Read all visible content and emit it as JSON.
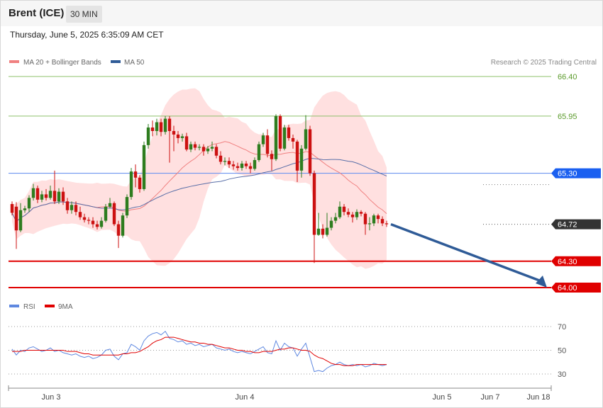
{
  "header": {
    "instrument": "Brent (ICE)",
    "timeframe": "30 MIN",
    "datetime": "Thursday, June 5, 2025 6:35:09 AM CET"
  },
  "legend": {
    "ma20": "MA 20 + Bollinger Bands",
    "ma50": "MA 50",
    "rsi": "RSI",
    "rsi_ma": "9MA",
    "credit": "Research © 2025 Trading Central"
  },
  "colors": {
    "bull": "#2e7d1f",
    "bear": "#cc1111",
    "bollinger_fill": "#ffd6d6",
    "ma20": "#f08080",
    "ma50": "#5a6fa8",
    "resistance": "#8cc06a",
    "pivot": "#1a5ff0",
    "support": "#e00000",
    "last": "#333333",
    "rsi": "#5f88e0",
    "rsi_ma": "#e00000",
    "forecast_arrow": "#2f5b97"
  },
  "chart_data": [
    {
      "type": "candlestick",
      "title": "Brent (ICE)",
      "x_ticks": [
        "Jun 3",
        "Jun 4",
        "Jun 5",
        "Jun 7",
        "Jun 18"
      ],
      "ylim": [
        63.9,
        66.52
      ],
      "levels": [
        {
          "value": 66.4,
          "label": "66.40",
          "kind": "resistance"
        },
        {
          "value": 65.95,
          "label": "65.95",
          "kind": "resistance"
        },
        {
          "value": 65.3,
          "label": "65.30",
          "kind": "pivot"
        },
        {
          "value": 64.72,
          "label": "64.72",
          "kind": "last"
        },
        {
          "value": 64.3,
          "label": "64.30",
          "kind": "support"
        },
        {
          "value": 64.0,
          "label": "64.00",
          "kind": "support"
        }
      ],
      "forecast": {
        "from": 64.72,
        "to": 64.0
      },
      "candles": [
        [
          64.95,
          64.85,
          64.98,
          64.82
        ],
        [
          64.92,
          64.65,
          64.97,
          64.44
        ],
        [
          64.65,
          64.88,
          64.96,
          64.63
        ],
        [
          64.88,
          64.9,
          64.93,
          64.85
        ],
        [
          64.9,
          65.02,
          65.05,
          64.86
        ],
        [
          65.02,
          65.13,
          65.18,
          64.99
        ],
        [
          65.13,
          65.0,
          65.16,
          64.96
        ],
        [
          65.0,
          65.06,
          65.1,
          64.97
        ],
        [
          65.06,
          65.02,
          65.12,
          64.99
        ],
        [
          65.02,
          65.1,
          65.16,
          65.0
        ],
        [
          65.1,
          64.98,
          65.33,
          64.95
        ],
        [
          64.98,
          65.09,
          65.13,
          64.95
        ],
        [
          65.09,
          64.98,
          65.14,
          64.94
        ],
        [
          64.98,
          64.88,
          65.02,
          64.84
        ],
        [
          64.88,
          64.94,
          64.98,
          64.84
        ],
        [
          64.94,
          64.86,
          64.98,
          64.82
        ],
        [
          64.86,
          64.8,
          64.92,
          64.77
        ],
        [
          64.8,
          64.77,
          64.84,
          64.74
        ],
        [
          64.77,
          64.76,
          64.8,
          64.72
        ],
        [
          64.76,
          64.72,
          64.8,
          64.68
        ],
        [
          64.72,
          64.69,
          64.76,
          64.66
        ],
        [
          64.69,
          64.76,
          64.8,
          64.67
        ],
        [
          64.76,
          64.92,
          64.95,
          64.74
        ],
        [
          64.92,
          64.96,
          65.02,
          64.9
        ],
        [
          64.96,
          64.72,
          64.98,
          64.7
        ],
        [
          64.72,
          64.59,
          64.76,
          64.45
        ],
        [
          64.59,
          64.82,
          64.85,
          64.57
        ],
        [
          64.82,
          65.03,
          65.06,
          64.79
        ],
        [
          65.03,
          65.32,
          65.36,
          65.0
        ],
        [
          65.32,
          65.25,
          65.4,
          65.14
        ],
        [
          65.25,
          65.12,
          65.28,
          65.08
        ],
        [
          65.12,
          65.62,
          65.66,
          65.1
        ],
        [
          65.62,
          65.82,
          65.86,
          65.58
        ],
        [
          65.82,
          65.78,
          65.9,
          65.72
        ],
        [
          65.78,
          65.88,
          65.92,
          65.73
        ],
        [
          65.88,
          65.77,
          65.92,
          65.72
        ],
        [
          65.77,
          65.92,
          65.95,
          65.74
        ],
        [
          65.92,
          65.78,
          65.95,
          65.42
        ],
        [
          65.78,
          65.74,
          65.84,
          65.55
        ],
        [
          65.74,
          65.7,
          65.78,
          65.64
        ],
        [
          65.7,
          65.72,
          65.75,
          65.66
        ],
        [
          65.72,
          65.57,
          65.76,
          65.55
        ],
        [
          65.57,
          65.63,
          65.66,
          65.54
        ],
        [
          65.63,
          65.59,
          65.66,
          65.56
        ],
        [
          65.59,
          65.6,
          65.63,
          65.56
        ],
        [
          65.6,
          65.55,
          65.63,
          65.5
        ],
        [
          65.55,
          65.58,
          65.61,
          65.52
        ],
        [
          65.58,
          65.6,
          65.66,
          65.55
        ],
        [
          65.6,
          65.5,
          65.63,
          65.47
        ],
        [
          65.5,
          65.43,
          65.55,
          65.4
        ],
        [
          65.43,
          65.44,
          65.48,
          65.39
        ],
        [
          65.44,
          65.4,
          65.48,
          65.36
        ],
        [
          65.4,
          65.38,
          65.44,
          65.34
        ],
        [
          65.38,
          65.36,
          65.42,
          65.33
        ],
        [
          65.36,
          65.41,
          65.44,
          65.33
        ],
        [
          65.41,
          65.38,
          65.44,
          65.35
        ],
        [
          65.38,
          65.35,
          65.42,
          65.3
        ],
        [
          65.35,
          65.45,
          65.48,
          65.33
        ],
        [
          65.45,
          65.63,
          65.66,
          65.43
        ],
        [
          65.63,
          65.73,
          65.76,
          65.6
        ],
        [
          65.73,
          65.52,
          65.8,
          65.48
        ],
        [
          65.52,
          65.46,
          65.56,
          65.33
        ],
        [
          65.46,
          65.95,
          65.97,
          65.44
        ],
        [
          65.95,
          65.58,
          65.97,
          65.55
        ],
        [
          65.58,
          65.82,
          65.85,
          65.56
        ],
        [
          65.82,
          65.7,
          65.85,
          65.67
        ],
        [
          65.7,
          65.66,
          65.74,
          65.58
        ],
        [
          65.66,
          65.33,
          65.68,
          65.2
        ],
        [
          65.33,
          65.58,
          65.62,
          65.25
        ],
        [
          65.58,
          65.8,
          65.96,
          65.56
        ],
        [
          65.8,
          65.3,
          65.84,
          65.27
        ],
        [
          65.3,
          64.6,
          65.33,
          64.28
        ],
        [
          64.6,
          64.67,
          64.85,
          64.59
        ],
        [
          64.67,
          64.6,
          64.72,
          64.56
        ],
        [
          64.6,
          64.68,
          64.85,
          64.58
        ],
        [
          64.68,
          64.76,
          64.8,
          64.65
        ],
        [
          64.76,
          64.8,
          64.85,
          64.73
        ],
        [
          64.8,
          64.92,
          64.98,
          64.78
        ],
        [
          64.92,
          64.86,
          64.95,
          64.82
        ],
        [
          64.86,
          64.83,
          64.9,
          64.8
        ],
        [
          64.83,
          64.8,
          64.86,
          64.74
        ],
        [
          64.8,
          64.86,
          64.89,
          64.77
        ],
        [
          64.86,
          64.84,
          64.88,
          64.81
        ],
        [
          64.84,
          64.72,
          64.86,
          64.6
        ],
        [
          64.72,
          64.73,
          64.8,
          64.65
        ],
        [
          64.73,
          64.82,
          64.84,
          64.7
        ],
        [
          64.82,
          64.78,
          64.84,
          64.73
        ],
        [
          64.78,
          64.73,
          64.81,
          64.7
        ],
        [
          64.73,
          64.72,
          64.76,
          64.69
        ]
      ]
    },
    {
      "type": "line",
      "title": "RSI",
      "ylim": [
        22,
        80
      ],
      "y_ticks": [
        70,
        50,
        30
      ],
      "series": [
        {
          "name": "RSI",
          "values": [
            51,
            46,
            50,
            49,
            52,
            53,
            51,
            49,
            50,
            52,
            49,
            50,
            48,
            47,
            46,
            47,
            45,
            44,
            45,
            43,
            44,
            46,
            50,
            51,
            45,
            42,
            47,
            48,
            55,
            53,
            50,
            58,
            62,
            64,
            65,
            63,
            66,
            60,
            59,
            57,
            58,
            55,
            56,
            54,
            55,
            53,
            54,
            55,
            52,
            51,
            50,
            51,
            49,
            48,
            49,
            48,
            47,
            49,
            51,
            53,
            48,
            47,
            58,
            50,
            56,
            53,
            52,
            45,
            51,
            56,
            44,
            32,
            33,
            32,
            35,
            37,
            38,
            40,
            38,
            37,
            38,
            37,
            38,
            36,
            37,
            39,
            38,
            37,
            38
          ]
        },
        {
          "name": "9MA",
          "values": [
            49,
            49,
            49,
            50,
            50,
            50,
            50,
            50,
            50,
            50,
            50,
            50,
            50,
            49,
            49,
            49,
            48,
            47,
            47,
            46,
            46,
            46,
            46,
            46,
            46,
            46,
            47,
            47,
            48,
            48,
            49,
            51,
            53,
            56,
            58,
            59,
            61,
            61,
            61,
            60,
            59,
            58,
            57,
            57,
            56,
            56,
            55,
            55,
            54,
            53,
            52,
            52,
            51,
            50,
            50,
            49,
            49,
            48,
            48,
            49,
            49,
            49,
            50,
            51,
            51,
            52,
            52,
            51,
            50,
            50,
            49,
            46,
            44,
            43,
            41,
            39,
            38,
            38,
            37,
            37,
            37,
            38,
            38,
            38,
            38,
            38,
            38,
            38,
            38
          ]
        }
      ]
    }
  ]
}
